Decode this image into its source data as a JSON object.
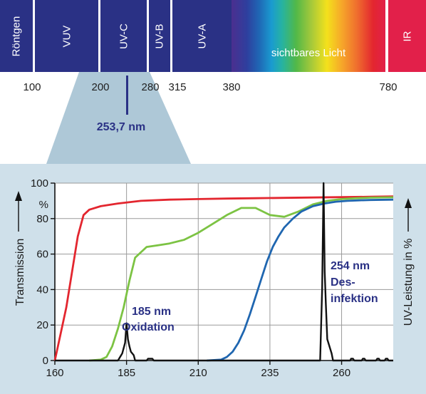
{
  "spectrum": {
    "bands": [
      {
        "key": "roentgen",
        "label": "Röntgen"
      },
      {
        "key": "vuv",
        "label": "VUV"
      },
      {
        "key": "uvc",
        "label": "UV-C"
      },
      {
        "key": "uvb",
        "label": "UV-B"
      },
      {
        "key": "uva",
        "label": "UV-A"
      },
      {
        "key": "visible",
        "label": "sichtbares Licht"
      },
      {
        "key": "ir",
        "label": "IR"
      }
    ],
    "wavelengths": [
      "100",
      "200",
      "280",
      "315",
      "380",
      "780"
    ],
    "marker": "253,7 nm"
  },
  "colors": {
    "band_blue": "#2a3185",
    "panel_bg": "#cfe0ea",
    "funnel": "#aec8d7",
    "red_curve": "#e3262f",
    "green_curve": "#7cc343",
    "blue_curve": "#1f66b0",
    "black_curve": "#111111"
  },
  "chart_data": {
    "type": "line",
    "xlabel": "",
    "ylabel": "Transmission",
    "ylabel_right": "UV-Leistung in %",
    "y_unit": "%",
    "xlim": [
      160,
      278
    ],
    "ylim": [
      0,
      100
    ],
    "xticks": [
      160,
      185,
      210,
      235,
      260
    ],
    "yticks": [
      0,
      20,
      40,
      60,
      80,
      100
    ],
    "grid": true,
    "series": [
      {
        "color": "#e3262f",
        "x": [
          160,
          164,
          168,
          170,
          172,
          176,
          182,
          190,
          200,
          210,
          220,
          230,
          240,
          250,
          260,
          270,
          278
        ],
        "y": [
          0,
          30,
          70,
          82,
          85,
          87,
          88.5,
          90,
          90.7,
          91,
          91.3,
          91.5,
          91.7,
          91.9,
          92.1,
          92.3,
          92.5
        ]
      },
      {
        "color": "#7cc343",
        "x": [
          172,
          176,
          178,
          180,
          182,
          184,
          186,
          188,
          192,
          196,
          200,
          205,
          210,
          215,
          220,
          225,
          230,
          235,
          240,
          245,
          250,
          255,
          260,
          265,
          270,
          278
        ],
        "y": [
          0,
          0.5,
          2,
          8,
          18,
          30,
          45,
          58,
          64,
          65,
          66,
          68,
          72,
          77,
          82,
          86,
          86,
          82,
          81,
          84,
          88,
          90,
          91,
          91.5,
          91.8,
          92
        ]
      },
      {
        "color": "#1f66b0",
        "x": [
          213,
          218,
          220,
          222,
          224,
          226,
          228,
          230,
          232,
          234,
          236,
          238,
          240,
          243,
          246,
          250,
          254,
          258,
          262,
          266,
          270,
          278
        ],
        "y": [
          0,
          0.5,
          2,
          5,
          10,
          17,
          26,
          36,
          46,
          56,
          64,
          70,
          75,
          80,
          84,
          87,
          88.5,
          89.5,
          90,
          90.3,
          90.5,
          90.7
        ]
      },
      {
        "color": "#111111",
        "x": [
          160,
          182,
          183.5,
          184.5,
          185,
          185.5,
          186,
          186.5,
          187.5,
          188,
          192,
          192.5,
          193,
          194,
          194.5,
          200,
          252.5,
          253.2,
          253.7,
          254.1,
          254.5,
          255,
          256.5,
          257,
          263,
          263.3,
          264,
          264.4,
          267,
          267.4,
          268,
          268.4,
          272,
          272.4,
          273,
          273.4,
          275,
          275.4,
          276,
          276.4,
          278
        ],
        "y": [
          0,
          0,
          4,
          10,
          21,
          12,
          8,
          5,
          3,
          0,
          0,
          1,
          1,
          1,
          0,
          0,
          0,
          40,
          100,
          50,
          32,
          12,
          4,
          0,
          0,
          1,
          1,
          0,
          0,
          1,
          1,
          0,
          0,
          1,
          1,
          0,
          0,
          1,
          1,
          0,
          0
        ]
      }
    ],
    "annotations": [
      "185 nm",
      "Oxidation",
      "254 nm",
      "Des-",
      "infektion"
    ]
  }
}
